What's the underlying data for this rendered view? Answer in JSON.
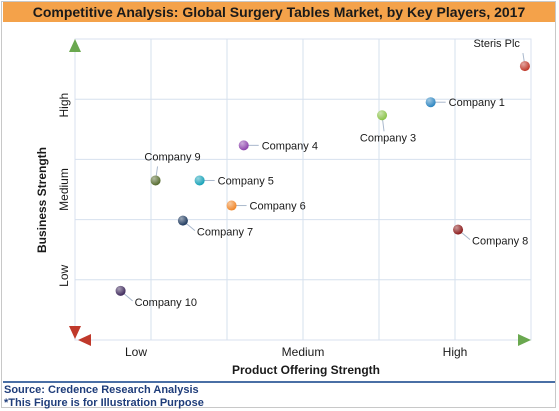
{
  "title": "Competitive Analysis: Global Surgery Tables Market, by Key Players, 2017",
  "source": "Source: Credence Research Analysis",
  "note": "*This Figure is for Illustration Purpose",
  "chart_data": {
    "type": "scatter",
    "xlabel": "Product Offering Strength",
    "ylabel": "Business Strength",
    "xlim": [
      0,
      3
    ],
    "ylim": [
      0,
      3
    ],
    "x_tick_labels": [
      "Low",
      "Medium",
      "High"
    ],
    "y_tick_labels": [
      "Low",
      "Medium",
      "High"
    ],
    "grid": true,
    "points": [
      {
        "label": "Steris Plc",
        "x": 2.96,
        "y": 2.73,
        "color": "#c0392b",
        "label_pos": "above-left"
      },
      {
        "label": "Company 1",
        "x": 2.34,
        "y": 2.37,
        "color": "#2e86c1",
        "label_pos": "right"
      },
      {
        "label": "Company 3",
        "x": 2.02,
        "y": 2.24,
        "color": "#8bc34a",
        "label_pos": "below"
      },
      {
        "label": "Company 4",
        "x": 1.11,
        "y": 1.94,
        "color": "#8e44ad",
        "label_pos": "right"
      },
      {
        "label": "Company 9",
        "x": 0.53,
        "y": 1.59,
        "color": "#556b2f",
        "label_pos": "above"
      },
      {
        "label": "Company 5",
        "x": 0.82,
        "y": 1.59,
        "color": "#17a2b8",
        "label_pos": "right"
      },
      {
        "label": "Company 6",
        "x": 1.03,
        "y": 1.34,
        "color": "#f0872a",
        "label_pos": "right"
      },
      {
        "label": "Company 7",
        "x": 0.71,
        "y": 1.19,
        "color": "#1f3a5f",
        "label_pos": "below-right"
      },
      {
        "label": "Company 8",
        "x": 2.52,
        "y": 1.1,
        "color": "#8b1a1a",
        "label_pos": "below-right"
      },
      {
        "label": "Company 10",
        "x": 0.3,
        "y": 0.49,
        "color": "#3f2a5c",
        "label_pos": "below-right"
      }
    ]
  },
  "colors": {
    "title_bg": "#f4a24a",
    "y_axis_arrow_top": "#6aa84f",
    "axis_arrow_red": "#c0392b",
    "axis_arrow_blue": "#3d6db5"
  }
}
